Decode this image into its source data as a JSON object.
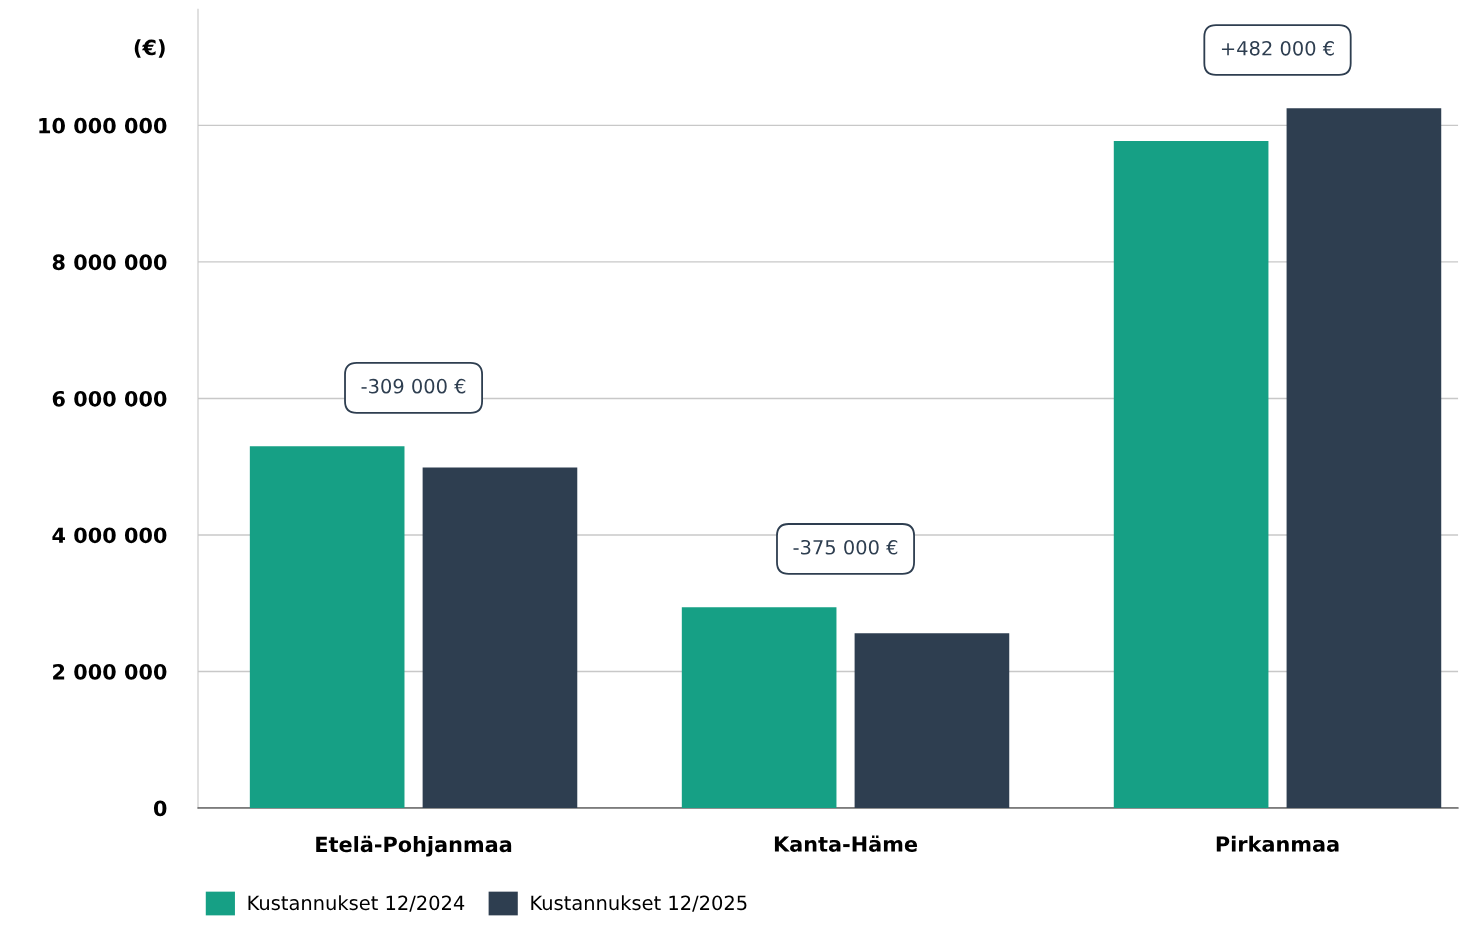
{
  "chart_data": {
    "type": "bar",
    "ylabel": "(€)",
    "categories": [
      "Etelä-Pohjanmaa",
      "Kanta-Häme",
      "Pirkanmaa"
    ],
    "series": [
      {
        "name": "Kustannukset 12/2024",
        "color": "#16a085",
        "values": [
          5300000,
          2940000,
          9770000
        ]
      },
      {
        "name": "Kustannukset 12/2025",
        "color": "#2e3e50",
        "values": [
          4990000,
          2560000,
          10250000
        ]
      }
    ],
    "ylim": [
      0,
      11700000
    ],
    "yticks": [
      {
        "value": 0,
        "label": "0"
      },
      {
        "value": 2000000,
        "label": "2 000 000"
      },
      {
        "value": 4000000,
        "label": "4 000 000"
      },
      {
        "value": 6000000,
        "label": "6 000 000"
      },
      {
        "value": 8000000,
        "label": "8 000 000"
      },
      {
        "value": 10000000,
        "label": "10 000 000"
      }
    ],
    "annotations": [
      "-309 000 €",
      "-375 000 €",
      "+482 000 €"
    ],
    "grid": "y",
    "legend": "bottom left"
  }
}
